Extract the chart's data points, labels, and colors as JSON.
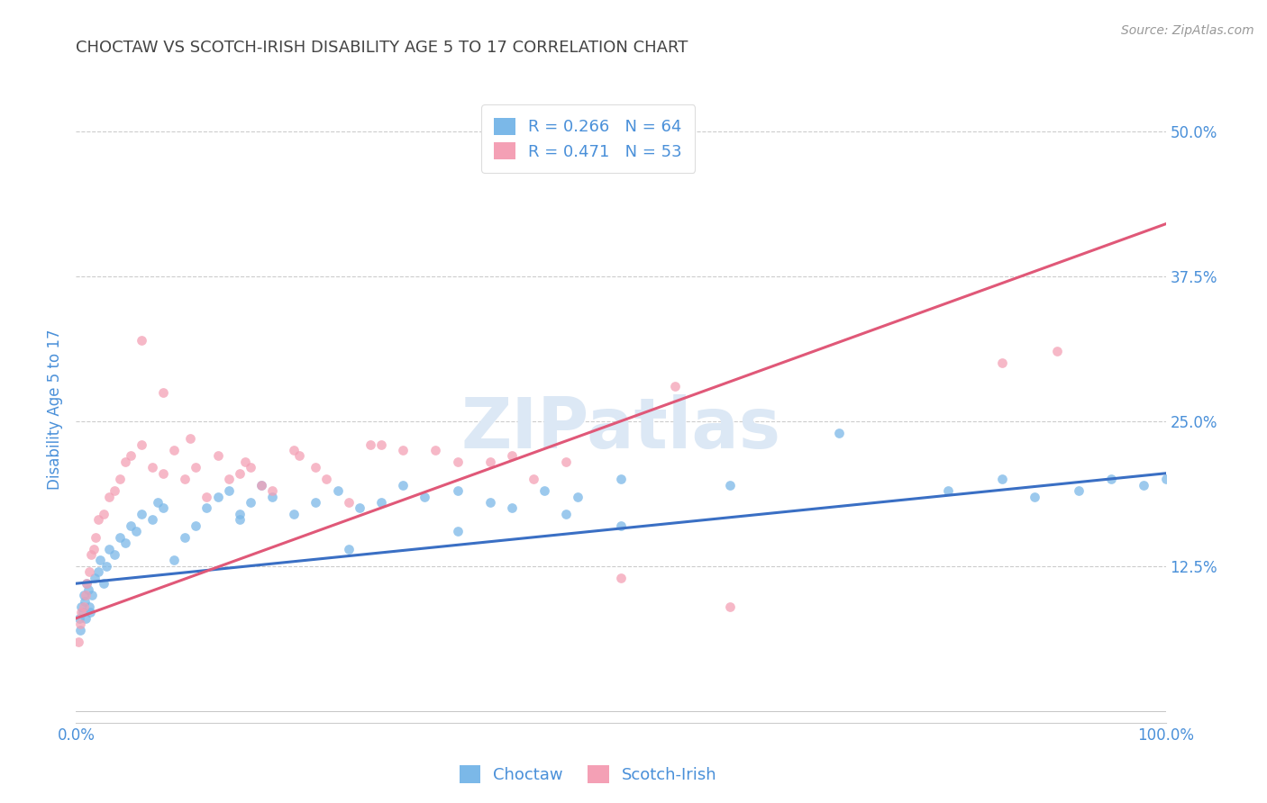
{
  "title": "CHOCTAW VS SCOTCH-IRISH DISABILITY AGE 5 TO 17 CORRELATION CHART",
  "source": "Source: ZipAtlas.com",
  "ylabel": "Disability Age 5 to 17",
  "choctaw_R": 0.266,
  "choctaw_N": 64,
  "scotch_R": 0.471,
  "scotch_N": 53,
  "choctaw_color": "#7bb8e8",
  "scotch_color": "#f4a0b5",
  "choctaw_line_color": "#3a6fc4",
  "scotch_line_color": "#e05878",
  "title_color": "#444444",
  "label_color": "#4a90d9",
  "tick_color": "#4a90d9",
  "watermark_color": "#dce8f5",
  "grid_color": "#cccccc",
  "background_color": "#ffffff",
  "xlim": [
    0,
    100
  ],
  "ylim": [
    -1,
    53
  ],
  "yticks": [
    12.5,
    25.0,
    37.5,
    50.0
  ],
  "xticks": [
    0,
    100
  ],
  "xticklabels": [
    "0.0%",
    "100.0%"
  ],
  "yticklabels": [
    "12.5%",
    "25.0%",
    "37.5%",
    "50.0%"
  ],
  "choctaw_trend_x": [
    0,
    100
  ],
  "choctaw_trend_y": [
    11.0,
    20.5
  ],
  "scotch_trend_x": [
    0,
    100
  ],
  "scotch_trend_y": [
    8.0,
    42.0
  ],
  "choctaw_x": [
    0.3,
    0.4,
    0.5,
    0.6,
    0.7,
    0.8,
    0.9,
    1.0,
    1.1,
    1.2,
    1.3,
    1.5,
    1.7,
    2.0,
    2.2,
    2.5,
    2.8,
    3.0,
    3.5,
    4.0,
    4.5,
    5.0,
    5.5,
    6.0,
    7.0,
    7.5,
    8.0,
    9.0,
    10.0,
    11.0,
    12.0,
    13.0,
    14.0,
    15.0,
    16.0,
    17.0,
    18.0,
    20.0,
    22.0,
    24.0,
    26.0,
    28.0,
    30.0,
    32.0,
    35.0,
    38.0,
    40.0,
    43.0,
    46.0,
    50.0,
    60.0,
    70.0,
    80.0,
    85.0,
    88.0,
    92.0,
    95.0,
    98.0,
    100.0,
    50.0,
    45.0,
    35.0,
    25.0,
    15.0
  ],
  "choctaw_y": [
    8.0,
    7.0,
    9.0,
    8.5,
    10.0,
    9.5,
    8.0,
    11.0,
    10.5,
    9.0,
    8.5,
    10.0,
    11.5,
    12.0,
    13.0,
    11.0,
    12.5,
    14.0,
    13.5,
    15.0,
    14.5,
    16.0,
    15.5,
    17.0,
    16.5,
    18.0,
    17.5,
    13.0,
    15.0,
    16.0,
    17.5,
    18.5,
    19.0,
    17.0,
    18.0,
    19.5,
    18.5,
    17.0,
    18.0,
    19.0,
    17.5,
    18.0,
    19.5,
    18.5,
    19.0,
    18.0,
    17.5,
    19.0,
    18.5,
    20.0,
    19.5,
    24.0,
    19.0,
    20.0,
    18.5,
    19.0,
    20.0,
    19.5,
    20.0,
    16.0,
    17.0,
    15.5,
    14.0,
    16.5
  ],
  "scotch_x": [
    0.2,
    0.4,
    0.5,
    0.7,
    0.9,
    1.0,
    1.2,
    1.4,
    1.6,
    1.8,
    2.0,
    2.5,
    3.0,
    3.5,
    4.0,
    4.5,
    5.0,
    6.0,
    7.0,
    8.0,
    9.0,
    10.0,
    11.0,
    12.0,
    13.0,
    15.0,
    18.0,
    20.0,
    22.0,
    25.0,
    28.0,
    30.0,
    35.0,
    40.0,
    42.0,
    45.0,
    50.0,
    55.0,
    60.0,
    90.0,
    14.0,
    17.0,
    8.0,
    16.0,
    6.0,
    23.0,
    10.5,
    15.5,
    20.5,
    27.0,
    33.0,
    38.0,
    85.0
  ],
  "scotch_y": [
    6.0,
    7.5,
    8.5,
    9.0,
    10.0,
    11.0,
    12.0,
    13.5,
    14.0,
    15.0,
    16.5,
    17.0,
    18.5,
    19.0,
    20.0,
    21.5,
    22.0,
    23.0,
    21.0,
    20.5,
    22.5,
    20.0,
    21.0,
    18.5,
    22.0,
    20.5,
    19.0,
    22.5,
    21.0,
    18.0,
    23.0,
    22.5,
    21.5,
    22.0,
    20.0,
    21.5,
    11.5,
    28.0,
    9.0,
    31.0,
    20.0,
    19.5,
    27.5,
    21.0,
    32.0,
    20.0,
    23.5,
    21.5,
    22.0,
    23.0,
    22.5,
    21.5,
    30.0
  ]
}
